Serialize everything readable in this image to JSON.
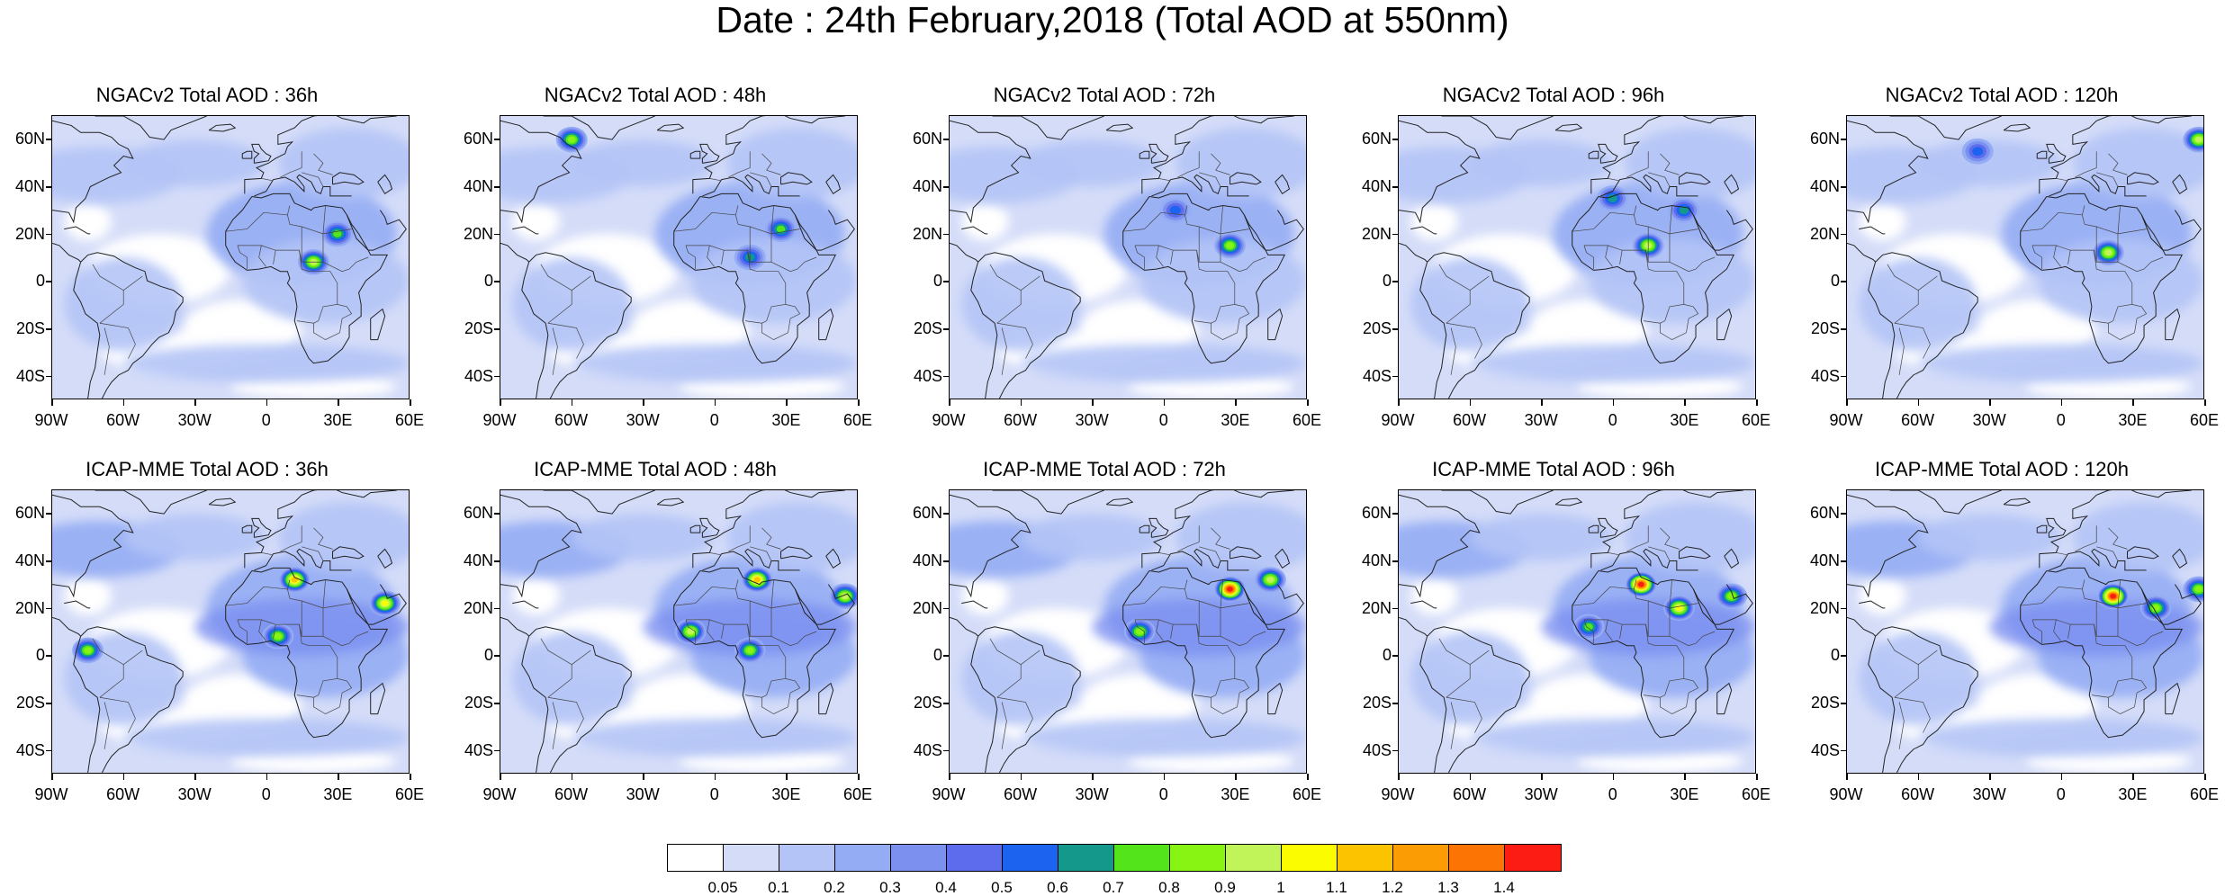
{
  "title": "Date : 24th February,2018 (Total AOD at 550nm)",
  "lat_labels": [
    "60N",
    "40N",
    "20N",
    "0",
    "20S",
    "40S"
  ],
  "lon_labels": [
    "90W",
    "60W",
    "30W",
    "0",
    "30E",
    "60E"
  ],
  "panels": [
    {
      "title": "NGACv2 Total AOD : 36h",
      "model": "NGACv2",
      "lead": "36h",
      "hotspots": [
        {
          "lon": 20,
          "lat": 8,
          "aod": 0.9
        },
        {
          "lon": 30,
          "lat": 20,
          "aod": 0.7
        }
      ]
    },
    {
      "title": "NGACv2 Total AOD : 48h",
      "model": "NGACv2",
      "lead": "48h",
      "hotspots": [
        {
          "lon": -60,
          "lat": 60,
          "aod": 0.8
        },
        {
          "lon": 28,
          "lat": 22,
          "aod": 0.7
        },
        {
          "lon": 15,
          "lat": 10,
          "aod": 0.6
        }
      ]
    },
    {
      "title": "NGACv2 Total AOD : 72h",
      "model": "NGACv2",
      "lead": "72h",
      "hotspots": [
        {
          "lon": 28,
          "lat": 15,
          "aod": 0.8
        },
        {
          "lon": 5,
          "lat": 30,
          "aod": 0.5
        }
      ]
    },
    {
      "title": "NGACv2 Total AOD : 96h",
      "model": "NGACv2",
      "lead": "96h",
      "hotspots": [
        {
          "lon": 15,
          "lat": 15,
          "aod": 0.9
        },
        {
          "lon": 0,
          "lat": 35,
          "aod": 0.6
        },
        {
          "lon": 30,
          "lat": 30,
          "aod": 0.6
        }
      ]
    },
    {
      "title": "NGACv2 Total AOD : 120h",
      "model": "NGACv2",
      "lead": "120h",
      "hotspots": [
        {
          "lon": 58,
          "lat": 60,
          "aod": 0.9
        },
        {
          "lon": 20,
          "lat": 12,
          "aod": 0.9
        },
        {
          "lon": -35,
          "lat": 55,
          "aod": 0.5
        }
      ]
    },
    {
      "title": "ICAP-MME Total AOD : 36h",
      "model": "ICAP-MME",
      "lead": "36h",
      "hotspots": [
        {
          "lon": 12,
          "lat": 32,
          "aod": 1.1
        },
        {
          "lon": 50,
          "lat": 22,
          "aod": 1.0
        },
        {
          "lon": 5,
          "lat": 8,
          "aod": 0.8
        },
        {
          "lon": -75,
          "lat": 2,
          "aod": 0.8
        }
      ]
    },
    {
      "title": "ICAP-MME Total AOD : 48h",
      "model": "ICAP-MME",
      "lead": "48h",
      "hotspots": [
        {
          "lon": 18,
          "lat": 32,
          "aod": 1.1
        },
        {
          "lon": -10,
          "lat": 10,
          "aod": 0.9
        },
        {
          "lon": 55,
          "lat": 25,
          "aod": 0.9
        },
        {
          "lon": 15,
          "lat": 2,
          "aod": 0.8
        }
      ]
    },
    {
      "title": "ICAP-MME Total AOD : 72h",
      "model": "ICAP-MME",
      "lead": "72h",
      "hotspots": [
        {
          "lon": 28,
          "lat": 28,
          "aod": 1.4
        },
        {
          "lon": 45,
          "lat": 32,
          "aod": 0.9
        },
        {
          "lon": -10,
          "lat": 10,
          "aod": 0.8
        }
      ]
    },
    {
      "title": "ICAP-MME Total AOD : 96h",
      "model": "ICAP-MME",
      "lead": "96h",
      "hotspots": [
        {
          "lon": 12,
          "lat": 30,
          "aod": 1.4
        },
        {
          "lon": 28,
          "lat": 20,
          "aod": 1.0
        },
        {
          "lon": 50,
          "lat": 25,
          "aod": 0.8
        },
        {
          "lon": -10,
          "lat": 12,
          "aod": 0.7
        }
      ]
    },
    {
      "title": "ICAP-MME Total AOD : 120h",
      "model": "ICAP-MME",
      "lead": "120h",
      "hotspots": [
        {
          "lon": 22,
          "lat": 25,
          "aod": 1.4
        },
        {
          "lon": 40,
          "lat": 20,
          "aod": 0.8
        },
        {
          "lon": 58,
          "lat": 28,
          "aod": 0.8
        }
      ]
    }
  ],
  "colorbar": {
    "labels": [
      "0.05",
      "0.1",
      "0.2",
      "0.3",
      "0.4",
      "0.5",
      "0.6",
      "0.7",
      "0.8",
      "0.9",
      "1",
      "1.1",
      "1.2",
      "1.3",
      "1.4"
    ],
    "colors": [
      "#ffffff",
      "#d4dcf8",
      "#b4c4f6",
      "#94acf4",
      "#7c90f0",
      "#5c6cec",
      "#1c64f0",
      "#14988c",
      "#54e41c",
      "#88f414",
      "#c0f458",
      "#fcfc00",
      "#fcc400",
      "#fc9c04",
      "#fc7404",
      "#fc1c14"
    ]
  }
}
